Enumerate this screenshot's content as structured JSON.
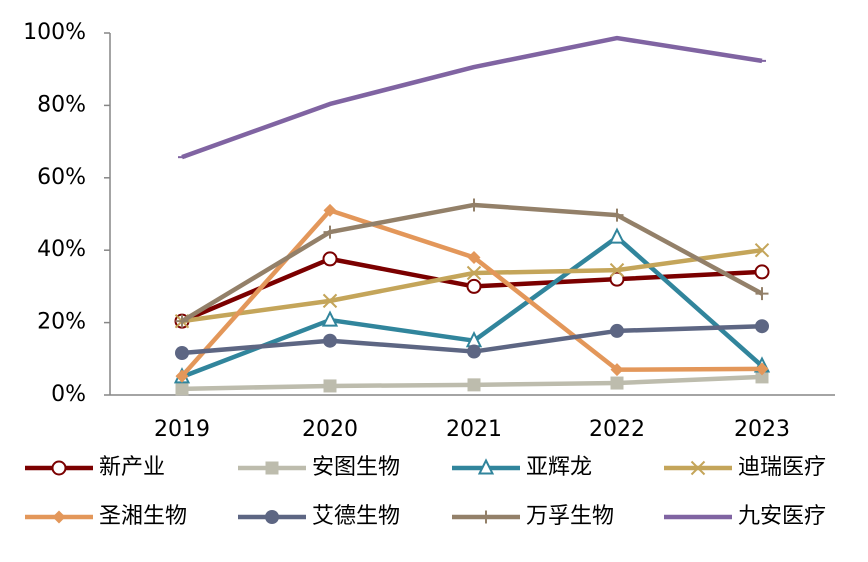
{
  "chart_data": {
    "type": "line",
    "categories": [
      "2019",
      "2020",
      "2021",
      "2022",
      "2023"
    ],
    "ylim": [
      0,
      100
    ],
    "yticks": [
      {
        "value": 0,
        "label": "0%"
      },
      {
        "value": 20,
        "label": "20%"
      },
      {
        "value": 40,
        "label": "40%"
      },
      {
        "value": 60,
        "label": "60%"
      },
      {
        "value": 80,
        "label": "80%"
      },
      {
        "value": 100,
        "label": "100%"
      }
    ],
    "legend": "bottom",
    "series": [
      {
        "name": "新产业",
        "color": "#7b0000",
        "marker": "circle-open",
        "values": [
          20.4,
          37.6,
          30,
          32,
          34
        ]
      },
      {
        "name": "安图生物",
        "color": "#bdbcad",
        "marker": "square",
        "values": [
          1.7,
          2.5,
          2.8,
          3.3,
          5
        ]
      },
      {
        "name": "亚辉龙",
        "color": "#31859c",
        "marker": "triangle-open",
        "values": [
          5,
          20.7,
          15,
          43.6,
          8
        ]
      },
      {
        "name": "迪瑞医疗",
        "color": "#c4a55a",
        "marker": "x",
        "values": [
          20.4,
          26,
          33.7,
          34.5,
          40
        ]
      },
      {
        "name": "圣湘生物",
        "color": "#e3975a",
        "marker": "diamond",
        "values": [
          5.2,
          51,
          38,
          7,
          7.2
        ]
      },
      {
        "name": "艾德生物",
        "color": "#5d6683",
        "marker": "circle",
        "values": [
          11.6,
          15,
          12,
          17.7,
          19
        ]
      },
      {
        "name": "万孚生物",
        "color": "#938069",
        "marker": "plus",
        "values": [
          20.4,
          45,
          52.5,
          49.7,
          28
        ]
      },
      {
        "name": "九安医疗",
        "color": "#8064a2",
        "marker": "dash",
        "values": [
          65.7,
          80.4,
          90.6,
          98.6,
          92.3
        ]
      }
    ]
  }
}
